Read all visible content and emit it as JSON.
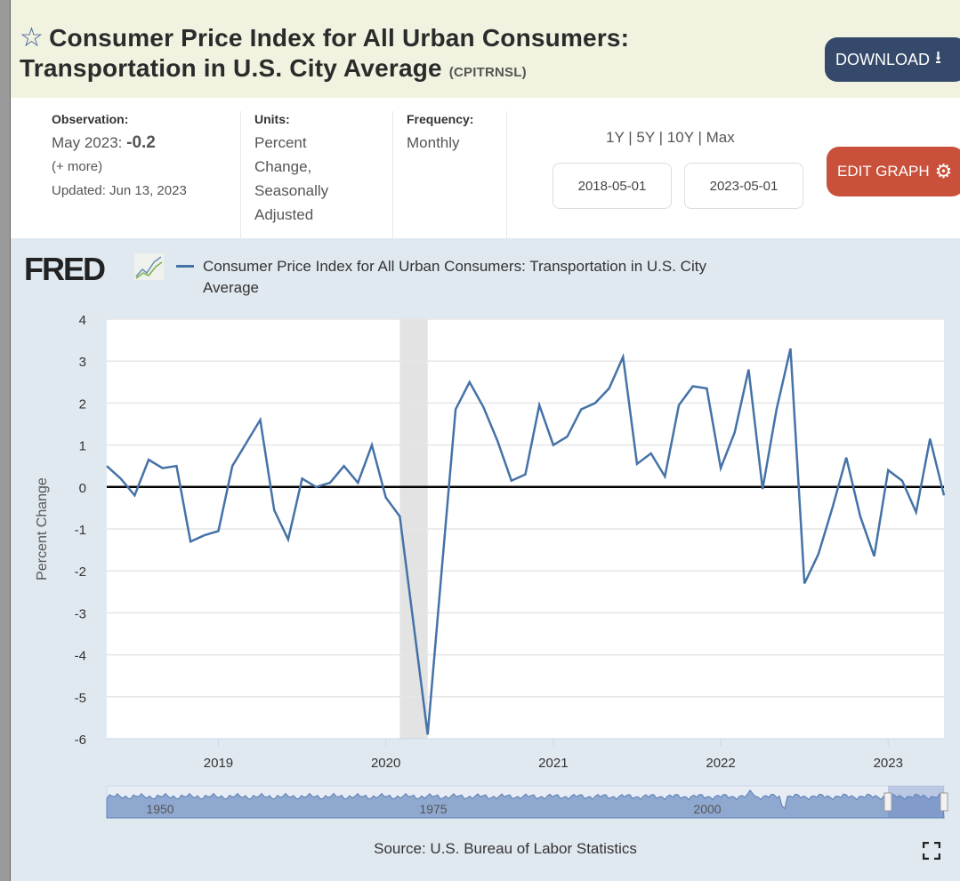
{
  "header": {
    "title_line1": "Consumer Price Index for All Urban Consumers:",
    "title_line2": "Transportation in U.S. City Average",
    "series_code": "(CPITRNSL)",
    "star_icon": "star-outline-icon",
    "download_label": "DOWNLOAD",
    "download_icon": "download-icon"
  },
  "info": {
    "observation_label": "Observation:",
    "observation_date": "May 2023:",
    "observation_value": "-0.2",
    "more_link": "(+ more)",
    "updated": "Updated: Jun 13, 2023",
    "units_label": "Units:",
    "units_lines": [
      "Percent",
      "Change,",
      "Seasonally",
      "Adjusted"
    ],
    "frequency_label": "Frequency:",
    "frequency_value": "Monthly",
    "ranges": [
      "1Y",
      "5Y",
      "10Y",
      "Max"
    ],
    "range_sep": "|",
    "start_date": "2018-05-01",
    "end_date": "2023-05-01",
    "edit_label": "EDIT GRAPH",
    "edit_icon": "gear-icon"
  },
  "chart_data": {
    "type": "line",
    "logo": "FRED",
    "legend": [
      "Consumer Price Index for All Urban Consumers: Transportation in U.S. City",
      "Average"
    ],
    "ylabel": "Percent Change",
    "ylim": [
      -6,
      4
    ],
    "yticks": [
      4,
      3,
      2,
      1,
      0,
      -1,
      -2,
      -3,
      -4,
      -5,
      -6
    ],
    "xticks": [
      "2019",
      "2020",
      "2021",
      "2022",
      "2023"
    ],
    "x_start": "2018-05",
    "x_end": "2023-05",
    "recession": [
      "2020-02",
      "2020-04"
    ],
    "color": "#4572a7",
    "series": [
      {
        "name": "CPITRNSL",
        "values": [
          0.5,
          0.2,
          -0.2,
          0.65,
          0.45,
          0.5,
          -1.3,
          -1.15,
          -1.05,
          0.5,
          1.05,
          1.6,
          -0.55,
          -1.25,
          0.2,
          0.0,
          0.1,
          0.5,
          0.1,
          1.0,
          -0.25,
          -0.7,
          -3.3,
          -5.9,
          -2.0,
          1.85,
          2.5,
          1.9,
          1.1,
          0.15,
          0.3,
          1.95,
          1.0,
          1.2,
          1.85,
          2.0,
          2.35,
          3.1,
          0.55,
          0.8,
          0.25,
          1.95,
          2.4,
          2.35,
          0.45,
          1.3,
          2.8,
          -0.05,
          1.85,
          3.3,
          -2.3,
          -1.6,
          -0.5,
          0.7,
          -0.7,
          -1.65,
          0.4,
          0.15,
          -0.6,
          1.15,
          -0.2
        ]
      }
    ],
    "navigator_ticks": [
      "1950",
      "1975",
      "2000"
    ],
    "source": "Source: U.S. Bureau of Labor Statistics"
  },
  "fullscreen_icon": "fullscreen-icon"
}
